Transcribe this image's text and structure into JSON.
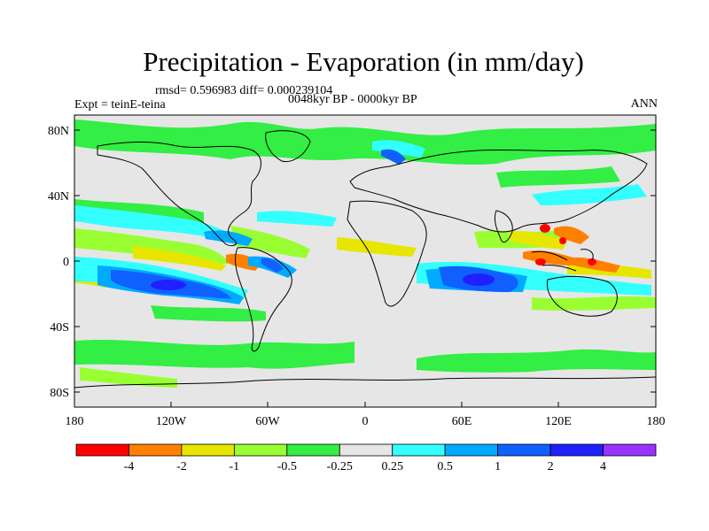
{
  "title": "Precipitation - Evaporation (in mm/day)",
  "stats": "rmsd= 0.596983 diff= 0.000239104",
  "experiment": "Expt = teinE-teina",
  "period": "0048kyr BP - 0000kyr BP",
  "season": "ANN",
  "lat_ticks": [
    "80N",
    "40N",
    "0",
    "40S",
    "80S"
  ],
  "lon_ticks": [
    "180",
    "120W",
    "60W",
    "0",
    "60E",
    "120E",
    "180"
  ],
  "colorbar": {
    "labels": [
      "-4",
      "-2",
      "-1",
      "-0.5",
      "-0.25",
      "0.25",
      "0.5",
      "1",
      "2",
      "4"
    ],
    "colors": [
      "#ff0000",
      "#ff8000",
      "#e6e600",
      "#99ff33",
      "#33ee44",
      "#e6e6e6",
      "#33ffff",
      "#00aaff",
      "#1060ff",
      "#2020ff",
      "#9933ff"
    ]
  },
  "colors": {
    "background_land_ocean_neutral": "#e6e6e6",
    "coastline": "#000000"
  }
}
